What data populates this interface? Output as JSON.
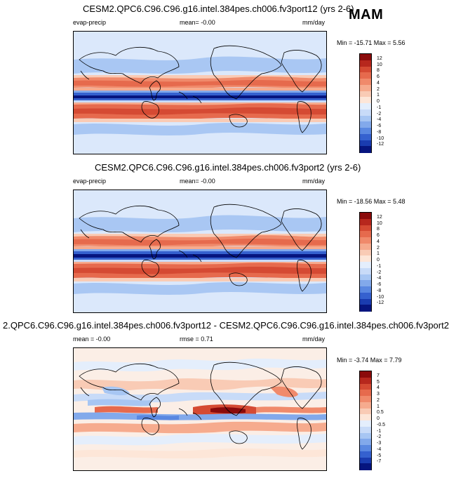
{
  "season": "MAM",
  "panels": [
    {
      "title": "CESM2.QPC6.C96.C96.g16.intel.384pes.ch006.fv3port12 (yrs 2-6)",
      "left_label": "evap-precip",
      "center_label": "mean=  -0.00",
      "units": "mm/day",
      "minmax": "Min = -15.71 Max =   5.56",
      "colorbar_labels": [
        "12",
        "10",
        "8",
        "6",
        "4",
        "2",
        "1",
        "0",
        "-1",
        "-2",
        "-4",
        "-6",
        "-8",
        "-10",
        "-12"
      ],
      "colorbar_colors": [
        "#8b0b0b",
        "#b7271d",
        "#d54a33",
        "#e66a4d",
        "#f08a6b",
        "#f6ab8e",
        "#f9cbb5",
        "#fde6d8",
        "#e4eefc",
        "#c8dbf8",
        "#a7c6f3",
        "#82a9eb",
        "#5a88e1",
        "#3561cf",
        "#1a3cb0",
        "#06157f"
      ]
    },
    {
      "title": "CESM2.QPC6.C96.C96.g16.intel.384pes.ch006.fv3port2 (yrs 2-6)",
      "left_label": "evap-precip",
      "center_label": "mean=  -0.00",
      "units": "mm/day",
      "minmax": "Min = -18.56 Max =   5.48",
      "colorbar_labels": [
        "12",
        "10",
        "8",
        "6",
        "4",
        "2",
        "1",
        "0",
        "-1",
        "-2",
        "-4",
        "-6",
        "-8",
        "-10",
        "-12"
      ],
      "colorbar_colors": [
        "#8b0b0b",
        "#b7271d",
        "#d54a33",
        "#e66a4d",
        "#f08a6b",
        "#f6ab8e",
        "#f9cbb5",
        "#fde6d8",
        "#e4eefc",
        "#c8dbf8",
        "#a7c6f3",
        "#82a9eb",
        "#5a88e1",
        "#3561cf",
        "#1a3cb0",
        "#06157f"
      ]
    },
    {
      "title": "2.QPC6.C96.C96.g16.intel.384pes.ch006.fv3port12 - CESM2.QPC6.C96.C96.g16.intel.384pes.ch006.fv3port2",
      "left_label": "mean =  -0.00",
      "center_label": "rmse =   0.71",
      "units": "mm/day",
      "minmax": "Min =  -3.74 Max =   7.79",
      "colorbar_labels": [
        "7",
        "5",
        "4",
        "3",
        "2",
        "1",
        "0.5",
        "0",
        "-0.5",
        "-1",
        "-2",
        "-3",
        "-4",
        "-5",
        "-7"
      ],
      "colorbar_colors": [
        "#8b0b0b",
        "#b7271d",
        "#d54a33",
        "#e66a4d",
        "#f08a6b",
        "#f6ab8e",
        "#f9cbb5",
        "#fde6d8",
        "#e4eefc",
        "#c8dbf8",
        "#a7c6f3",
        "#82a9eb",
        "#5a88e1",
        "#3561cf",
        "#1a3cb0",
        "#06157f"
      ]
    }
  ]
}
